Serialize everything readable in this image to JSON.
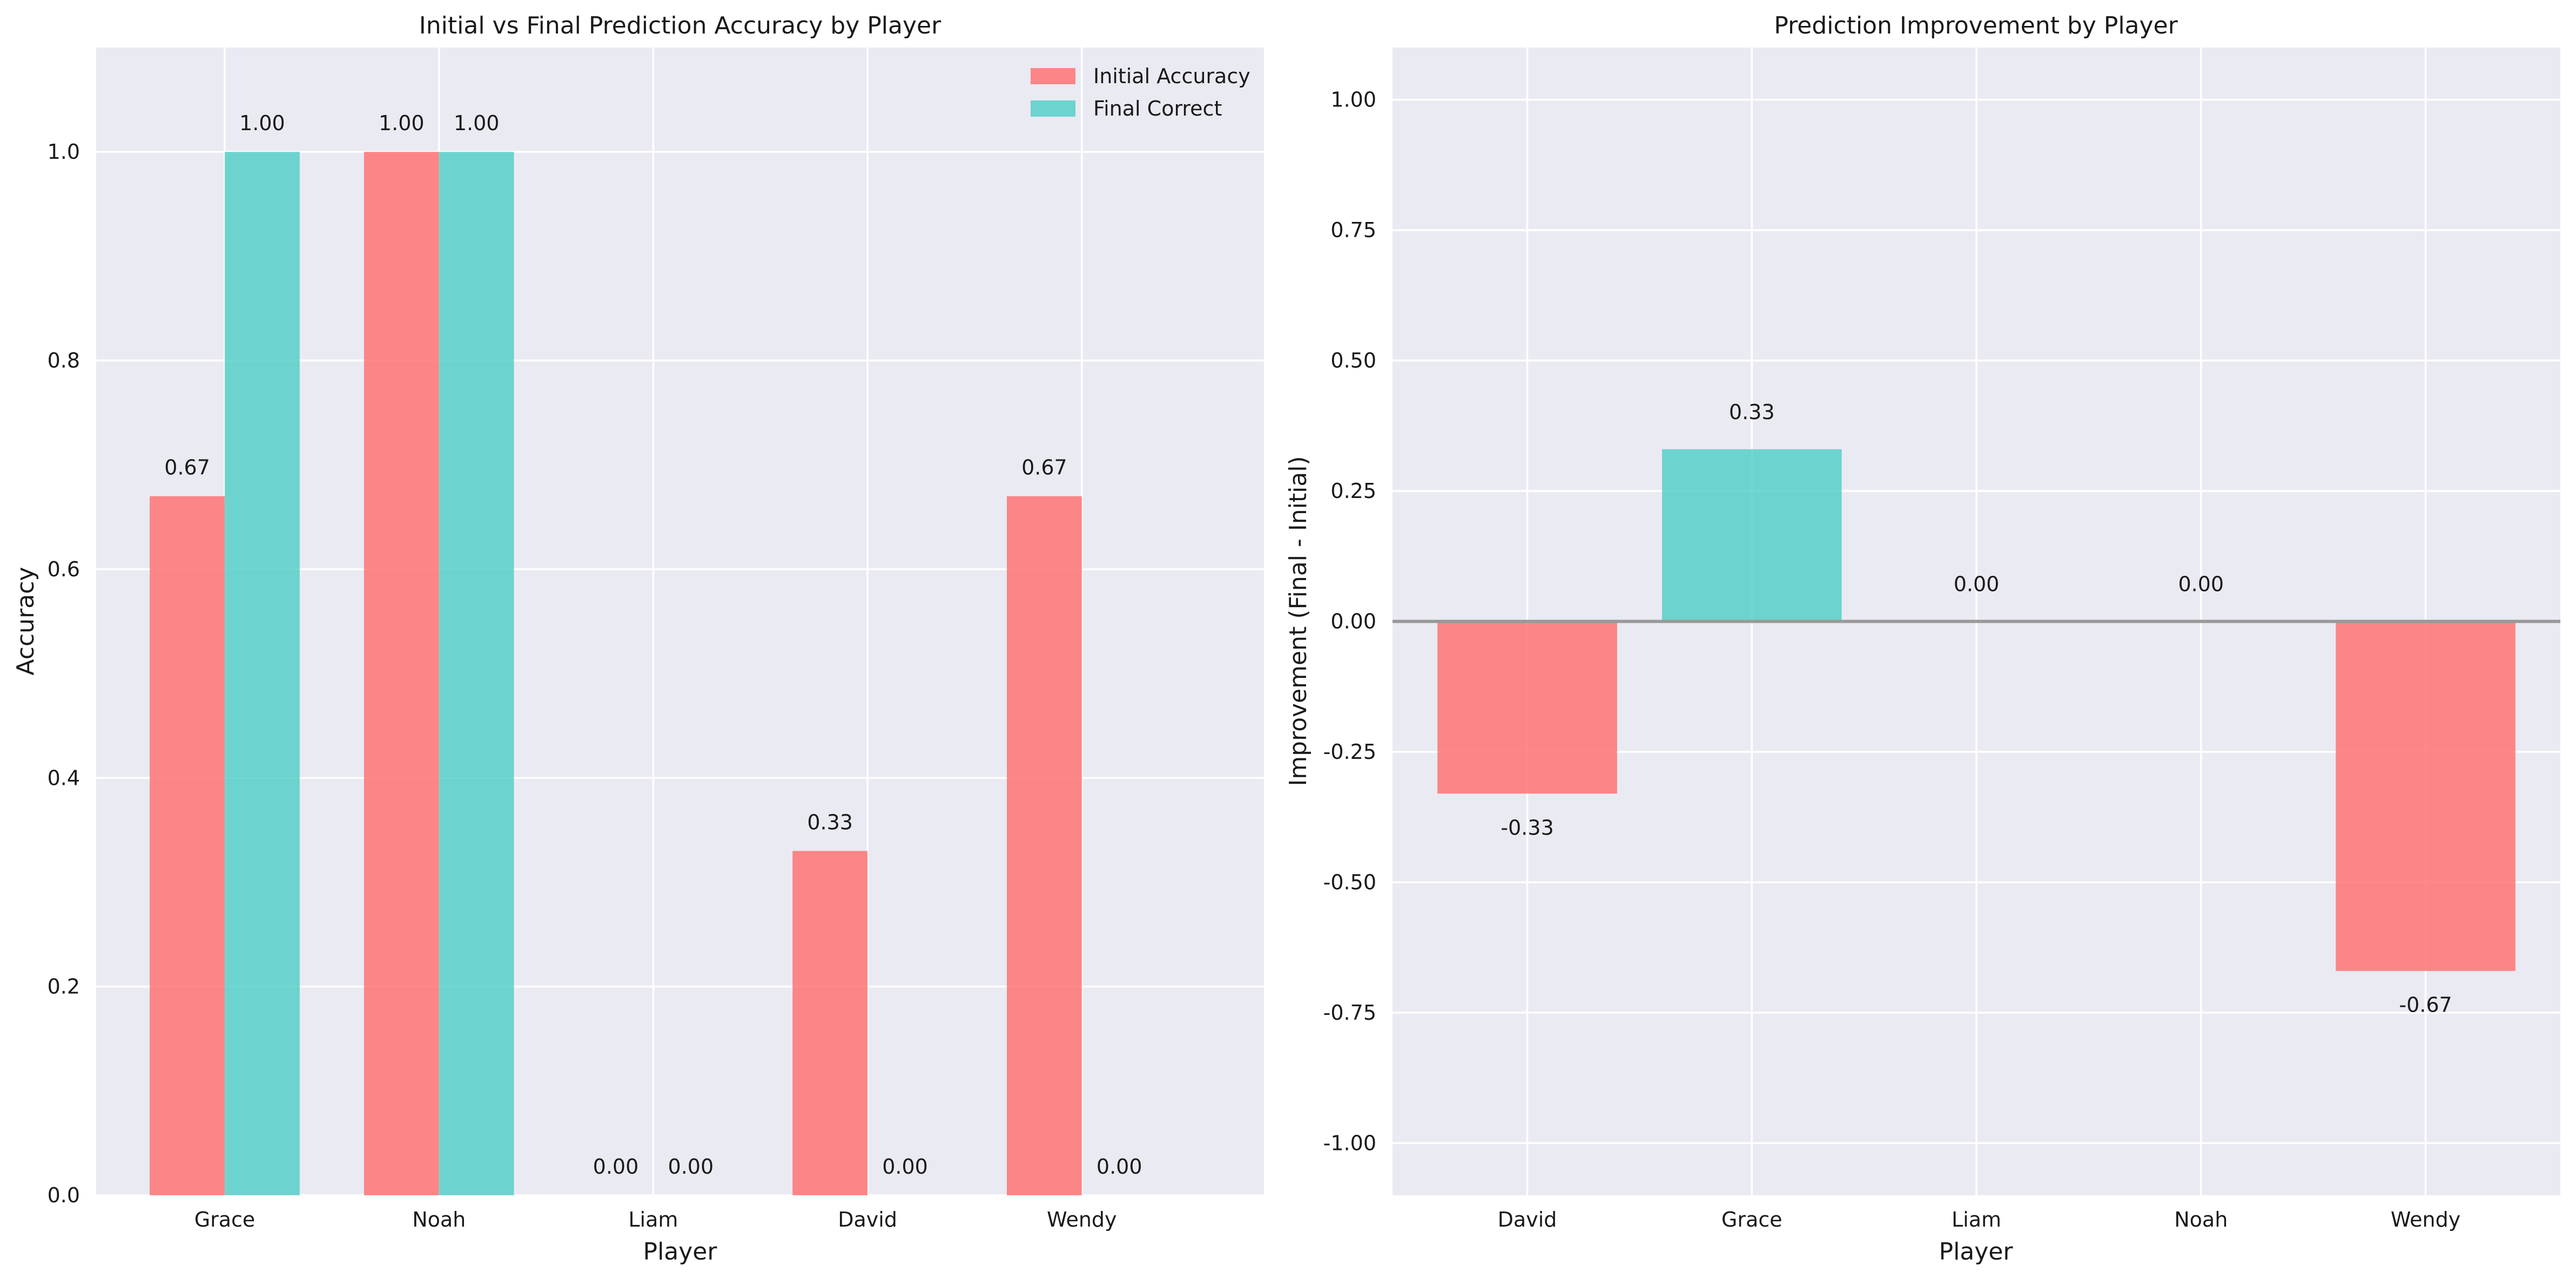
{
  "colors": {
    "initial": "#ff6b6b",
    "final": "#4ecdc4",
    "plot_background": "#eaeaf2",
    "zero_line": "#999999"
  },
  "chart_data": [
    {
      "type": "bar",
      "title": "Initial vs Final Prediction Accuracy by Player",
      "xlabel": "Player",
      "ylabel": "Accuracy",
      "categories": [
        "Grace",
        "Noah",
        "Liam",
        "David",
        "Wendy"
      ],
      "series": [
        {
          "name": "Initial Accuracy",
          "values": [
            0.67,
            1.0,
            0.0,
            0.33,
            0.67
          ],
          "labels": [
            "0.67",
            "1.00",
            "0.00",
            "0.33",
            "0.67"
          ]
        },
        {
          "name": "Final Correct",
          "values": [
            1.0,
            1.0,
            0.0,
            0.0,
            0.0
          ],
          "labels": [
            "1.00",
            "1.00",
            "0.00",
            "0.00",
            "0.00"
          ]
        }
      ],
      "ylim": [
        0,
        1.1
      ],
      "yticks": [
        "0.0",
        "0.2",
        "0.4",
        "0.6",
        "0.8",
        "1.0"
      ],
      "legend": "top-right",
      "grid": true
    },
    {
      "type": "bar",
      "title": "Prediction Improvement by Player",
      "xlabel": "Player",
      "ylabel": "Improvement (Final - Initial)",
      "categories": [
        "David",
        "Grace",
        "Liam",
        "Noah",
        "Wendy"
      ],
      "values": [
        -0.33,
        0.33,
        0.0,
        0.0,
        -0.67
      ],
      "labels": [
        "-0.33",
        "0.33",
        "0.00",
        "0.00",
        "-0.67"
      ],
      "ylim": [
        -1.1,
        1.1
      ],
      "yticks": [
        "-1.00",
        "-0.75",
        "-0.50",
        "-0.25",
        "0.00",
        "0.25",
        "0.50",
        "0.75",
        "1.00"
      ],
      "zero_line": true,
      "grid": true
    }
  ]
}
